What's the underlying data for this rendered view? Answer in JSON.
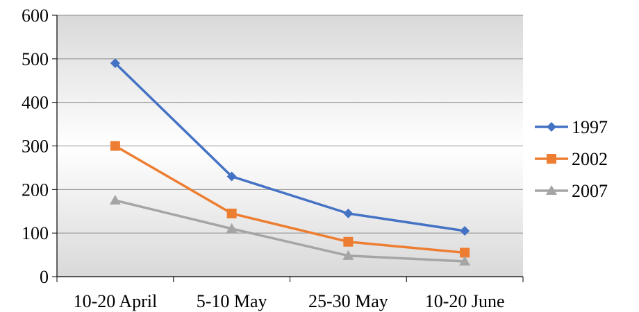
{
  "chart_data": {
    "type": "line",
    "title": "",
    "xlabel": "",
    "ylabel": "",
    "categories": [
      "10-20 April",
      "5-10 May",
      "25-30 May",
      "10-20 June"
    ],
    "ylim": [
      0,
      600
    ],
    "yticks": [
      0,
      100,
      200,
      300,
      400,
      500,
      600
    ],
    "grid": true,
    "legend_position": "right",
    "series": [
      {
        "name": "1997",
        "values": [
          490,
          230,
          145,
          105
        ],
        "color": "#4472C4",
        "marker": "diamond"
      },
      {
        "name": "2002",
        "values": [
          300,
          145,
          80,
          55
        ],
        "color": "#ED7D31",
        "marker": "square"
      },
      {
        "name": "2007",
        "values": [
          175,
          110,
          48,
          35
        ],
        "color": "#A5A5A5",
        "marker": "triangle"
      }
    ]
  }
}
